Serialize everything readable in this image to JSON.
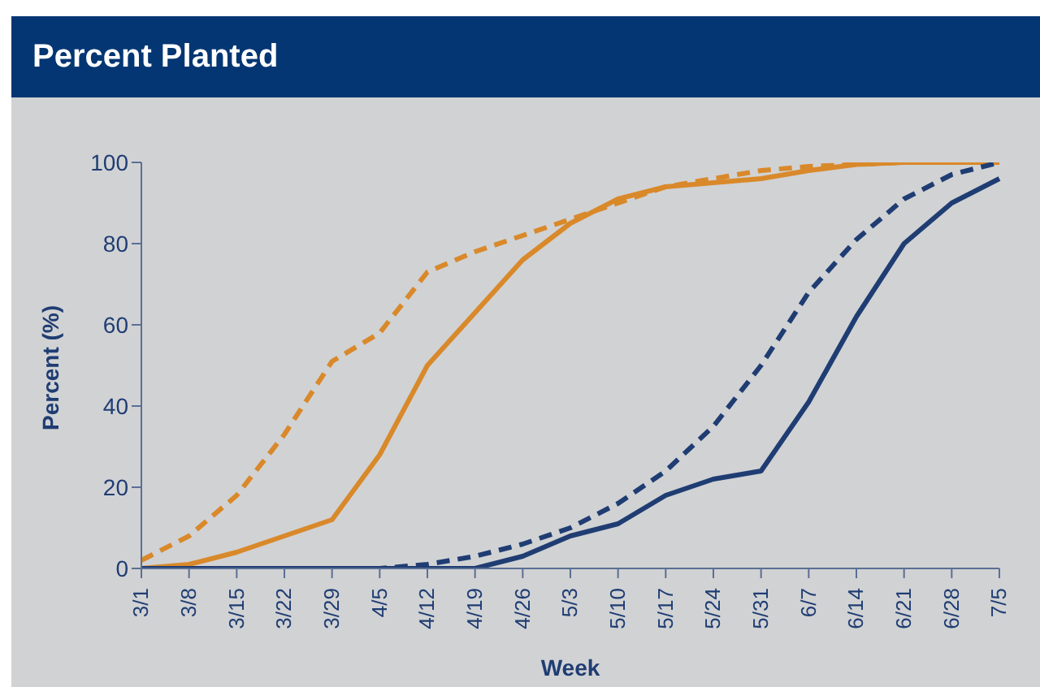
{
  "chart_data": {
    "type": "line",
    "title": "Percent Planted",
    "xlabel": "Week",
    "ylabel": "Percent (%)",
    "categories": [
      "3/1",
      "3/8",
      "3/15",
      "3/22",
      "3/29",
      "4/5",
      "4/12",
      "4/19",
      "4/26",
      "5/3",
      "5/10",
      "5/17",
      "5/24",
      "5/31",
      "6/7",
      "6/14",
      "6/21",
      "6/28",
      "7/5"
    ],
    "series": [
      {
        "color": "#d9892a",
        "line_style": "solid",
        "values": [
          0,
          1,
          4,
          8,
          12,
          28,
          50,
          63,
          76,
          85,
          91,
          94,
          95,
          96,
          98,
          99.5,
          100,
          100,
          100
        ]
      },
      {
        "color": "#d9892a",
        "line_style": "dashed",
        "values": [
          2,
          8,
          18,
          33,
          51,
          58,
          73,
          78,
          82,
          86,
          90,
          94,
          96,
          98,
          99,
          99.5,
          100,
          100,
          100
        ]
      },
      {
        "color": "#1f3d73",
        "line_style": "solid",
        "values": [
          0,
          0,
          0,
          0,
          0,
          0,
          0,
          0,
          3,
          8,
          11,
          18,
          22,
          24,
          41,
          62,
          80,
          90,
          96
        ]
      },
      {
        "color": "#1f3d73",
        "line_style": "dashed",
        "values": [
          0,
          0,
          0,
          0,
          0,
          0,
          1,
          3,
          6,
          10,
          16,
          24,
          35,
          50,
          68,
          81,
          91,
          97,
          100
        ]
      }
    ],
    "ylim": [
      0,
      100
    ],
    "yticks": [
      0,
      20,
      40,
      60,
      80,
      100
    ],
    "grid": false,
    "legend": false,
    "marker": "none"
  }
}
